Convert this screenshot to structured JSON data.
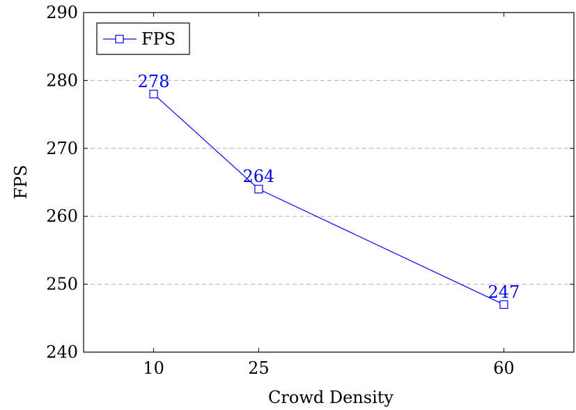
{
  "chart_data": {
    "type": "line",
    "title": "",
    "xlabel": "Crowd Density",
    "ylabel": "FPS",
    "x": [
      10,
      25,
      60
    ],
    "series": [
      {
        "name": "FPS",
        "values": [
          278,
          264,
          247
        ],
        "data_labels": [
          "278",
          "264",
          "247"
        ],
        "color": "#0000ff",
        "marker": "square"
      }
    ],
    "xticks": [
      10,
      25,
      60
    ],
    "xtick_labels": [
      "10",
      "25",
      "60"
    ],
    "xlim": [
      0,
      70
    ],
    "yticks": [
      240,
      250,
      260,
      270,
      280,
      290
    ],
    "ytick_labels": [
      "240",
      "250",
      "260",
      "270",
      "280",
      "290"
    ],
    "ylim": [
      240,
      290
    ],
    "grid": "horizontal-dashed",
    "legend": "top-left",
    "colors": {
      "series": "#0000ff",
      "grid": "#b0b0b0",
      "axes": "#000000"
    }
  }
}
